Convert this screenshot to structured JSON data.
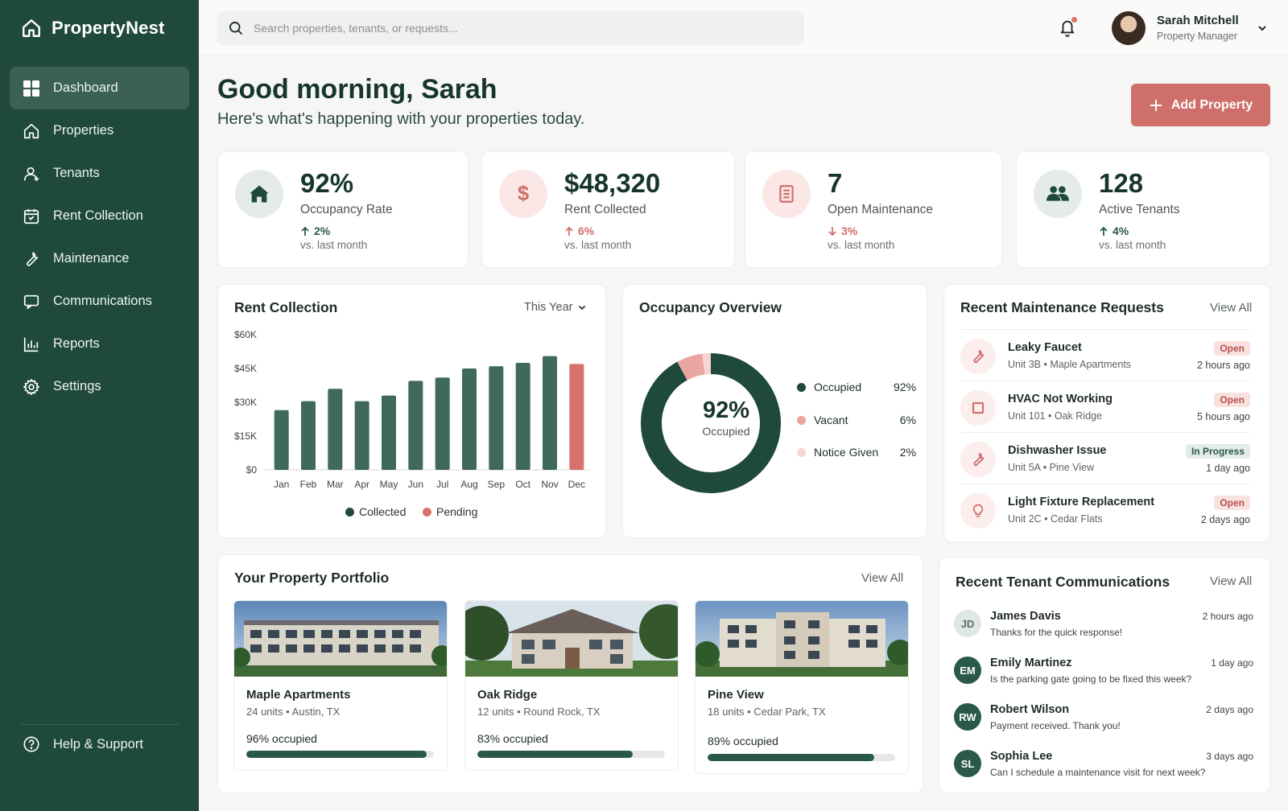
{
  "app": {
    "name": "PropertyNest"
  },
  "sidebar": {
    "items": [
      {
        "label": "Dashboard",
        "icon": "dashboard-icon",
        "active": true
      },
      {
        "label": "Properties",
        "icon": "home-icon"
      },
      {
        "label": "Tenants",
        "icon": "user-icon"
      },
      {
        "label": "Rent Collection",
        "icon": "calendar-dollar-icon"
      },
      {
        "label": "Maintenance",
        "icon": "wrench-icon"
      },
      {
        "label": "Communications",
        "icon": "message-icon"
      },
      {
        "label": "Reports",
        "icon": "bar-chart-icon"
      },
      {
        "label": "Settings",
        "icon": "gear-icon"
      }
    ],
    "help_label": "Help & Support"
  },
  "topbar": {
    "search_placeholder": "Search properties, tenants, or requests...",
    "user_name": "Sarah Mitchell",
    "user_role": "Property Manager"
  },
  "greeting": {
    "title": "Good morning, Sarah",
    "subtitle": "Here's what's happening with your properties today.",
    "add_button": "Add Property"
  },
  "stats": [
    {
      "value": "92%",
      "label": "Occupancy Rate",
      "trend": "2%",
      "direction": "up",
      "vs": "vs. last month",
      "icon": "house-icon",
      "icon_bg": "#e5ece8",
      "icon_color": "#2a5a47"
    },
    {
      "value": "$48,320",
      "label": "Rent Collected",
      "trend": "6%",
      "direction": "up",
      "vs": "vs. last month",
      "icon": "dollar-icon",
      "icon_bg": "#fbe7e5",
      "icon_color": "#cf6f6b"
    },
    {
      "value": "7",
      "label": "Open Maintenance",
      "trend": "3%",
      "direction": "down",
      "vs": "vs. last month",
      "icon": "clipboard-icon",
      "icon_bg": "#fbe7e5",
      "icon_color": "#cf6f6b"
    },
    {
      "value": "128",
      "label": "Active Tenants",
      "trend": "4%",
      "direction": "up",
      "vs": "vs. last month",
      "icon": "group-icon",
      "icon_bg": "#e5ece8",
      "icon_color": "#2a5a47"
    }
  ],
  "rent_collection": {
    "title": "Rent Collection",
    "range_label": "This Year",
    "legend_collected": "Collected",
    "legend_pending": "Pending"
  },
  "chart_data": {
    "type": "bar",
    "categories": [
      "Jan",
      "Feb",
      "Mar",
      "Apr",
      "May",
      "Jun",
      "Jul",
      "Aug",
      "Sep",
      "Oct",
      "Nov",
      "Dec"
    ],
    "series": [
      {
        "name": "Collected",
        "values": [
          26500,
          30500,
          36000,
          30500,
          33000,
          39500,
          41000,
          45000,
          46000,
          47500,
          50500,
          0
        ],
        "color": "#2a5a47"
      },
      {
        "name": "Pending",
        "values": [
          0,
          0,
          0,
          0,
          0,
          0,
          0,
          0,
          0,
          0,
          0,
          47000
        ],
        "color": "#d8706b"
      }
    ],
    "y_ticks": [
      "$0",
      "$15K",
      "$30K",
      "$45K",
      "$60K"
    ],
    "ylim": [
      0,
      60000
    ],
    "grid": false,
    "legend_position": "bottom"
  },
  "occupancy": {
    "title": "Occupancy Overview",
    "center_value": "92%",
    "center_label": "Occupied",
    "segments": [
      {
        "label": "Occupied",
        "value": 92,
        "pct": "92%",
        "color": "#1f4a3b"
      },
      {
        "label": "Vacant",
        "value": 6,
        "pct": "6%",
        "color": "#eaa6a2"
      },
      {
        "label": "Notice Given",
        "value": 2,
        "pct": "2%",
        "color": "#f5d6d3"
      }
    ]
  },
  "maintenance": {
    "title": "Recent Maintenance Requests",
    "view_all": "View All",
    "requests": [
      {
        "title": "Leaky Faucet",
        "location": "Unit 3B • Maple Apartments",
        "status": "Open",
        "status_type": "open",
        "time": "2 hours ago",
        "icon": "wrench-icon"
      },
      {
        "title": "HVAC Not Working",
        "location": "Unit 101 • Oak Ridge",
        "status": "Open",
        "status_type": "open",
        "time": "5 hours ago",
        "icon": "square-icon"
      },
      {
        "title": "Dishwasher Issue",
        "location": "Unit 5A • Pine View",
        "status": "In Progress",
        "status_type": "progress",
        "time": "1 day ago",
        "icon": "wrench-icon"
      },
      {
        "title": "Light Fixture Replacement",
        "location": "Unit 2C • Cedar Flats",
        "status": "Open",
        "status_type": "open",
        "time": "2 days ago",
        "icon": "bulb-icon"
      }
    ]
  },
  "portfolio": {
    "title": "Your Property Portfolio",
    "view_all": "View All",
    "properties": [
      {
        "name": "Maple Apartments",
        "meta": "24 units • Austin, TX",
        "occupied_label": "96% occupied",
        "occupied": 0.96
      },
      {
        "name": "Oak Ridge",
        "meta": "12 units • Round Rock, TX",
        "occupied_label": "83% occupied",
        "occupied": 0.83
      },
      {
        "name": "Pine View",
        "meta": "18 units • Cedar Park, TX",
        "occupied_label": "89% occupied",
        "occupied": 0.89
      }
    ]
  },
  "communications": {
    "title": "Recent Tenant Communications",
    "view_all": "View All",
    "messages": [
      {
        "initials": "JD",
        "name": "James Davis",
        "message": "Thanks for the quick response!",
        "time": "2 hours ago",
        "bg": "#dfe7e2",
        "fg": "#5b6e65"
      },
      {
        "initials": "EM",
        "name": "Emily Martinez",
        "message": "Is the parking gate going to be fixed this week?",
        "time": "1 day ago",
        "bg": "#2a5a47",
        "fg": "#ffffff"
      },
      {
        "initials": "RW",
        "name": "Robert Wilson",
        "message": "Payment received. Thank you!",
        "time": "2 days ago",
        "bg": "#2a5a47",
        "fg": "#ffffff"
      },
      {
        "initials": "SL",
        "name": "Sophia Lee",
        "message": "Can I schedule a maintenance visit for next week?",
        "time": "3 days ago",
        "bg": "#2a5a47",
        "fg": "#ffffff"
      }
    ]
  }
}
